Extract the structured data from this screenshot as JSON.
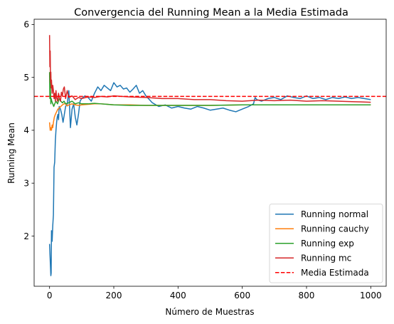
{
  "chart_data": {
    "type": "line",
    "title": "Convergencia del Running Mean a la Media Estimada",
    "xlabel": "Número de Muestras",
    "ylabel": "Running Mean",
    "xlim": [
      -48,
      1048
    ],
    "ylim": [
      1.05,
      6.1
    ],
    "xticks": [
      0,
      200,
      400,
      600,
      800,
      1000
    ],
    "yticks": [
      2,
      3,
      4,
      5,
      6
    ],
    "grid": false,
    "legend_position": "lower-right",
    "series": [
      {
        "name": "Running normal",
        "color": "#1f77b4",
        "x": [
          0,
          2,
          4,
          5,
          6,
          8,
          10,
          12,
          14,
          16,
          18,
          20,
          22,
          24,
          26,
          28,
          30,
          34,
          38,
          42,
          46,
          50,
          55,
          60,
          65,
          70,
          75,
          80,
          85,
          90,
          95,
          100,
          110,
          120,
          130,
          140,
          150,
          160,
          170,
          180,
          190,
          200,
          210,
          220,
          230,
          240,
          250,
          260,
          270,
          280,
          290,
          300,
          320,
          340,
          360,
          380,
          400,
          420,
          440,
          460,
          480,
          500,
          520,
          540,
          560,
          580,
          600,
          620,
          635,
          640,
          645,
          660,
          680,
          700,
          720,
          740,
          760,
          780,
          800,
          820,
          840,
          860,
          880,
          900,
          920,
          940,
          960,
          980,
          1000
        ],
        "values": [
          1.85,
          1.55,
          1.25,
          1.3,
          2.1,
          1.9,
          2.2,
          2.4,
          3.3,
          3.4,
          3.8,
          4.0,
          4.15,
          4.25,
          4.3,
          4.2,
          4.45,
          4.4,
          4.3,
          4.15,
          4.3,
          4.45,
          4.5,
          4.75,
          4.05,
          4.4,
          4.5,
          4.25,
          4.1,
          4.3,
          4.55,
          4.6,
          4.65,
          4.62,
          4.55,
          4.7,
          4.82,
          4.75,
          4.85,
          4.8,
          4.75,
          4.9,
          4.82,
          4.85,
          4.78,
          4.8,
          4.72,
          4.78,
          4.85,
          4.7,
          4.75,
          4.65,
          4.52,
          4.45,
          4.48,
          4.42,
          4.45,
          4.42,
          4.4,
          4.45,
          4.42,
          4.38,
          4.4,
          4.42,
          4.38,
          4.35,
          4.4,
          4.45,
          4.5,
          4.62,
          4.58,
          4.55,
          4.6,
          4.62,
          4.58,
          4.65,
          4.62,
          4.6,
          4.65,
          4.6,
          4.62,
          4.58,
          4.62,
          4.6,
          4.63,
          4.6,
          4.62,
          4.6,
          4.58
        ]
      },
      {
        "name": "Running cauchy",
        "color": "#ff7f0e",
        "x": [
          0,
          2,
          4,
          6,
          8,
          10,
          12,
          15,
          18,
          22,
          26,
          30,
          35,
          40,
          45,
          50,
          55,
          60,
          70,
          80,
          90,
          100,
          120,
          140,
          160,
          180,
          200,
          250,
          300,
          400,
          500,
          600,
          700,
          800,
          900,
          1000
        ],
        "values": [
          4.15,
          4.0,
          4.05,
          4.0,
          4.1,
          4.05,
          4.15,
          4.25,
          4.3,
          4.35,
          4.4,
          4.42,
          4.45,
          4.48,
          4.5,
          4.5,
          4.46,
          4.48,
          4.5,
          4.48,
          4.47,
          4.48,
          4.49,
          4.5,
          4.5,
          4.49,
          4.48,
          4.48,
          4.47,
          4.47,
          4.47,
          4.48,
          4.48,
          4.48,
          4.48,
          4.48
        ]
      },
      {
        "name": "Running exp",
        "color": "#2ca02c",
        "x": [
          0,
          1,
          2,
          3,
          4,
          5,
          7,
          10,
          13,
          16,
          20,
          25,
          30,
          35,
          40,
          45,
          50,
          60,
          70,
          80,
          90,
          100,
          120,
          140,
          160,
          180,
          200,
          250,
          300,
          400,
          500,
          600,
          700,
          800,
          900,
          1000
        ],
        "values": [
          5.1,
          4.6,
          4.9,
          4.7,
          4.5,
          4.6,
          4.55,
          4.5,
          4.45,
          4.5,
          4.55,
          4.5,
          4.6,
          4.55,
          4.52,
          4.55,
          4.5,
          4.52,
          4.55,
          4.5,
          4.52,
          4.5,
          4.5,
          4.51,
          4.5,
          4.49,
          4.48,
          4.47,
          4.47,
          4.47,
          4.47,
          4.48,
          4.48,
          4.48,
          4.48,
          4.48
        ]
      },
      {
        "name": "Running mc",
        "color": "#d62728",
        "x": [
          0,
          1,
          2,
          3,
          4,
          5,
          6,
          8,
          10,
          12,
          14,
          16,
          18,
          20,
          22,
          25,
          28,
          31,
          34,
          37,
          40,
          43,
          46,
          50,
          55,
          60,
          70,
          80,
          90,
          100,
          120,
          140,
          160,
          180,
          200,
          250,
          300,
          350,
          400,
          450,
          500,
          550,
          600,
          650,
          700,
          750,
          800,
          850,
          900,
          950,
          1000
        ],
        "values": [
          5.8,
          5.2,
          5.5,
          4.9,
          5.1,
          4.8,
          4.95,
          4.7,
          4.85,
          4.75,
          4.6,
          4.7,
          4.55,
          4.75,
          4.62,
          4.55,
          4.7,
          4.6,
          4.55,
          4.72,
          4.65,
          4.78,
          4.82,
          4.6,
          4.75,
          4.62,
          4.65,
          4.58,
          4.62,
          4.6,
          4.63,
          4.62,
          4.64,
          4.63,
          4.65,
          4.63,
          4.62,
          4.6,
          4.6,
          4.58,
          4.58,
          4.56,
          4.55,
          4.57,
          4.56,
          4.57,
          4.55,
          4.56,
          4.55,
          4.54,
          4.53
        ]
      },
      {
        "name": "Media Estimada",
        "color": "#ff0000",
        "dashed": true,
        "horizontal_value": 4.64
      }
    ]
  }
}
